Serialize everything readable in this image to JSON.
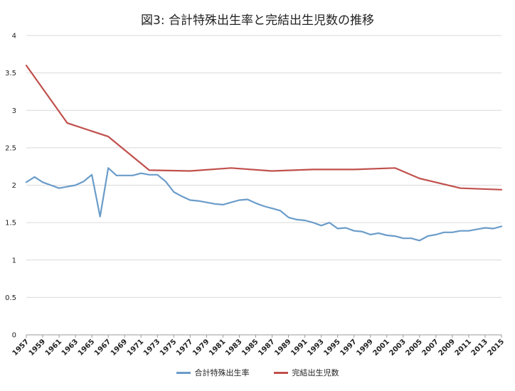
{
  "chart_data": {
    "type": "line",
    "title": "図3: 合計特殊出生率と完結出生児数の推移",
    "xlabel": "",
    "ylabel": "",
    "ylim": [
      0,
      4
    ],
    "yticks": [
      "0",
      "0.5",
      "1",
      "1.5",
      "2",
      "2.5",
      "3",
      "3.5",
      "4"
    ],
    "xticks": [
      "1957",
      "1959",
      "1961",
      "1963",
      "1965",
      "1967",
      "1969",
      "1971",
      "1973",
      "1975",
      "1977",
      "1979",
      "1981",
      "1983",
      "1985",
      "1987",
      "1989",
      "1991",
      "1993",
      "1995",
      "1997",
      "1999",
      "2001",
      "2003",
      "2005",
      "2007",
      "2009",
      "2011",
      "2013",
      "2015"
    ],
    "grid": true,
    "legend_position": "bottom",
    "series": [
      {
        "name": "合計特殊出生率",
        "color": "#6a9cc9",
        "x": [
          1957,
          1958,
          1959,
          1960,
          1961,
          1962,
          1963,
          1964,
          1965,
          1966,
          1967,
          1968,
          1969,
          1970,
          1971,
          1972,
          1973,
          1974,
          1975,
          1976,
          1977,
          1978,
          1979,
          1980,
          1981,
          1982,
          1983,
          1984,
          1985,
          1986,
          1987,
          1988,
          1989,
          1990,
          1991,
          1992,
          1993,
          1994,
          1995,
          1996,
          1997,
          1998,
          1999,
          2000,
          2001,
          2002,
          2003,
          2004,
          2005,
          2006,
          2007,
          2008,
          2009,
          2010,
          2011,
          2012,
          2013,
          2014,
          2015
        ],
        "values": [
          2.04,
          2.11,
          2.04,
          2.0,
          1.96,
          1.98,
          2.0,
          2.05,
          2.14,
          1.58,
          2.23,
          2.13,
          2.13,
          2.13,
          2.16,
          2.14,
          2.14,
          2.05,
          1.91,
          1.85,
          1.8,
          1.79,
          1.77,
          1.75,
          1.74,
          1.77,
          1.8,
          1.81,
          1.76,
          1.72,
          1.69,
          1.66,
          1.57,
          1.54,
          1.53,
          1.5,
          1.46,
          1.5,
          1.42,
          1.43,
          1.39,
          1.38,
          1.34,
          1.36,
          1.33,
          1.32,
          1.29,
          1.29,
          1.26,
          1.32,
          1.34,
          1.37,
          1.37,
          1.39,
          1.39,
          1.41,
          1.43,
          1.42,
          1.45
        ]
      },
      {
        "name": "完結出生児数",
        "color": "#c0504d",
        "x": [
          1957,
          1962,
          1967,
          1972,
          1977,
          1982,
          1987,
          1992,
          1997,
          2002,
          2005,
          2010,
          2015
        ],
        "values": [
          3.6,
          2.83,
          2.65,
          2.2,
          2.19,
          2.23,
          2.19,
          2.21,
          2.21,
          2.23,
          2.09,
          1.96,
          1.94
        ]
      }
    ]
  }
}
